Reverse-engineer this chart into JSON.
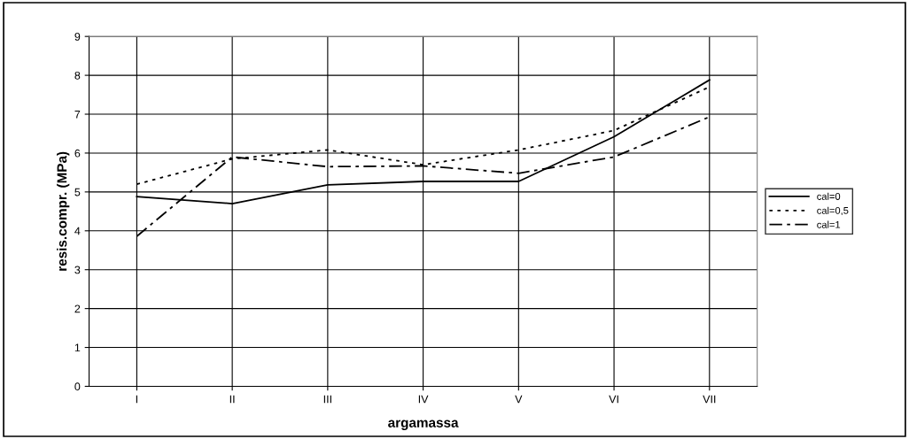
{
  "chart_data": {
    "type": "line",
    "xlabel": "argamassa",
    "ylabel": "resis.compr. (MPa)",
    "categories": [
      "I",
      "II",
      "III",
      "IV",
      "V",
      "VI",
      "VII"
    ],
    "series": [
      {
        "name": "cal=0",
        "color": "#000000",
        "line_style": "solid",
        "values": [
          4.88,
          4.7,
          5.18,
          5.27,
          5.27,
          6.42,
          7.88
        ]
      },
      {
        "name": "cal=0,5",
        "color": "#000000",
        "line_style": "dotted",
        "values": [
          5.2,
          5.85,
          6.08,
          5.7,
          6.08,
          6.58,
          7.7
        ]
      },
      {
        "name": "cal=1",
        "color": "#000000",
        "line_style": "dashdot",
        "values": [
          3.86,
          5.9,
          5.65,
          5.67,
          5.48,
          5.9,
          6.93
        ]
      }
    ],
    "ylim": [
      0,
      9
    ],
    "yticks": [
      0,
      1,
      2,
      3,
      4,
      5,
      6,
      7,
      8,
      9
    ],
    "grid": true,
    "legend": "right",
    "marker": "none"
  }
}
